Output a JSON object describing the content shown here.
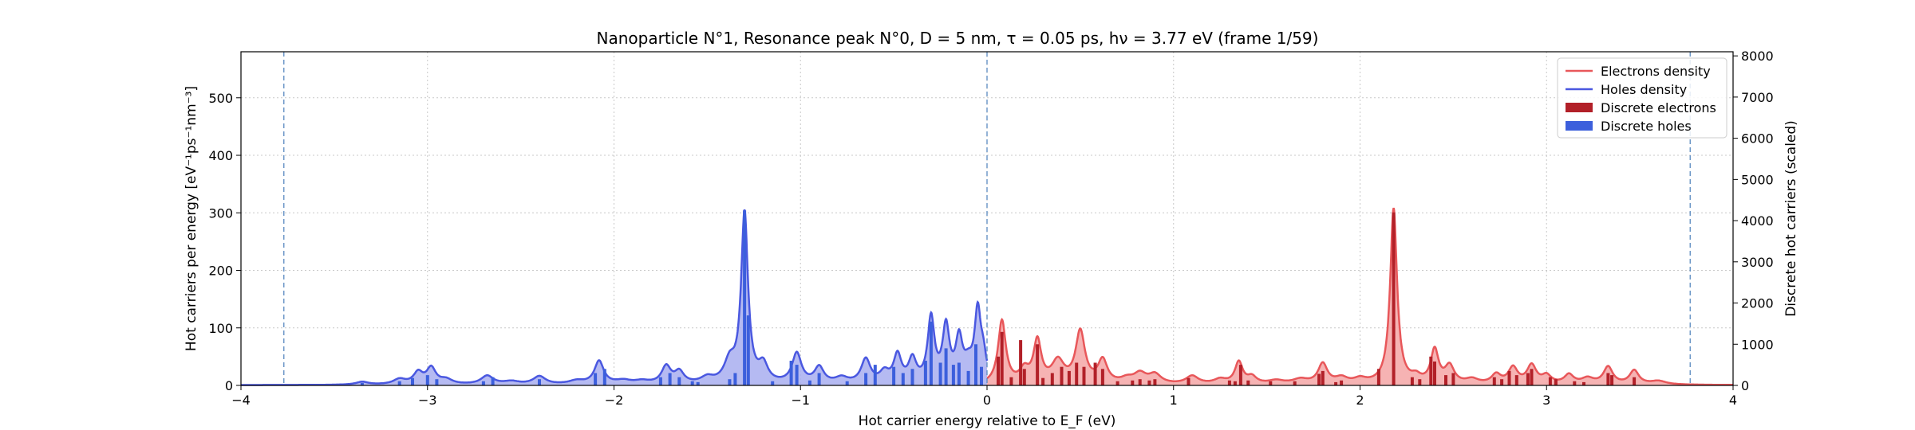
{
  "chart_data": {
    "type": "area",
    "title": "Nanoparticle N°1, Resonance peak N°0, D = 5 nm, τ = 0.05 ps, hν = 3.77 eV   (frame 1/59)",
    "xlabel": "Hot carrier energy relative to E_F (eV)",
    "ylabel": "Hot carriers per energy [eV⁻¹ps⁻¹nm⁻³]",
    "ylabel_right": "Discrete hot carriers (scaled)",
    "xlim": [
      -4,
      4
    ],
    "ylim": [
      0,
      580
    ],
    "ylim_right": [
      0,
      8100
    ],
    "x_ticks": [
      -4,
      -3,
      -2,
      -1,
      0,
      1,
      2,
      3,
      4
    ],
    "x_tick_labels": [
      "−4",
      "−3",
      "−2",
      "−1",
      "0",
      "1",
      "2",
      "3",
      "4"
    ],
    "y_ticks": [
      0,
      100,
      200,
      300,
      400,
      500
    ],
    "y_tick_labels": [
      "0",
      "100",
      "200",
      "300",
      "400",
      "500"
    ],
    "y_ticks_right": [
      0,
      1000,
      2000,
      3000,
      4000,
      5000,
      6000,
      7000,
      8000
    ],
    "y_tick_labels_right": [
      "0",
      "1000",
      "2000",
      "3000",
      "4000",
      "5000",
      "6000",
      "7000",
      "8000"
    ],
    "grid": true,
    "legend_position": "top-right",
    "vlines": [
      -3.77,
      0,
      3.77
    ],
    "series": [
      {
        "name": "Electrons density",
        "color": "#e8575a",
        "fill": "#f4a6a6",
        "baseline": 0.5,
        "peaks": [
          [
            0.08,
            110,
            0.025
          ],
          [
            0.2,
            22,
            0.03
          ],
          [
            0.27,
            73,
            0.025
          ],
          [
            0.38,
            38,
            0.04
          ],
          [
            0.5,
            90,
            0.03
          ],
          [
            0.62,
            40,
            0.03
          ],
          [
            0.75,
            8,
            0.04
          ],
          [
            0.82,
            17,
            0.04
          ],
          [
            0.9,
            16,
            0.04
          ],
          [
            1.1,
            14,
            0.04
          ],
          [
            1.25,
            8,
            0.04
          ],
          [
            1.35,
            38,
            0.025
          ],
          [
            1.42,
            12,
            0.03
          ],
          [
            1.55,
            6,
            0.05
          ],
          [
            1.68,
            8,
            0.05
          ],
          [
            1.8,
            35,
            0.03
          ],
          [
            1.9,
            10,
            0.04
          ],
          [
            2.0,
            8,
            0.04
          ],
          [
            2.18,
            305,
            0.022
          ],
          [
            2.3,
            10,
            0.03
          ],
          [
            2.4,
            58,
            0.025
          ],
          [
            2.48,
            30,
            0.03
          ],
          [
            2.6,
            8,
            0.04
          ],
          [
            2.73,
            16,
            0.03
          ],
          [
            2.82,
            28,
            0.03
          ],
          [
            2.92,
            32,
            0.03
          ],
          [
            3.0,
            14,
            0.03
          ],
          [
            3.12,
            16,
            0.03
          ],
          [
            3.22,
            10,
            0.04
          ],
          [
            3.33,
            30,
            0.03
          ],
          [
            3.47,
            24,
            0.03
          ],
          [
            3.6,
            6,
            0.05
          ]
        ]
      },
      {
        "name": "Holes density",
        "color": "#4a58e0",
        "fill": "#a8aef0",
        "baseline": 0.5,
        "peaks": [
          [
            -3.35,
            5,
            0.04
          ],
          [
            -3.15,
            9,
            0.04
          ],
          [
            -3.05,
            20,
            0.03
          ],
          [
            -2.98,
            28,
            0.03
          ],
          [
            -2.9,
            8,
            0.04
          ],
          [
            -2.68,
            15,
            0.04
          ],
          [
            -2.55,
            5,
            0.05
          ],
          [
            -2.4,
            14,
            0.04
          ],
          [
            -2.2,
            6,
            0.05
          ],
          [
            -2.08,
            40,
            0.03
          ],
          [
            -1.95,
            6,
            0.05
          ],
          [
            -1.85,
            5,
            0.05
          ],
          [
            -1.72,
            30,
            0.03
          ],
          [
            -1.65,
            20,
            0.03
          ],
          [
            -1.5,
            10,
            0.04
          ],
          [
            -1.38,
            35,
            0.035
          ],
          [
            -1.3,
            295,
            0.022
          ],
          [
            -1.2,
            30,
            0.03
          ],
          [
            -1.02,
            52,
            0.03
          ],
          [
            -0.9,
            28,
            0.03
          ],
          [
            -0.78,
            10,
            0.04
          ],
          [
            -0.65,
            42,
            0.03
          ],
          [
            -0.55,
            18,
            0.03
          ],
          [
            -0.48,
            48,
            0.025
          ],
          [
            -0.4,
            40,
            0.025
          ],
          [
            -0.3,
            112,
            0.022
          ],
          [
            -0.22,
            95,
            0.022
          ],
          [
            -0.15,
            72,
            0.022
          ],
          [
            -0.1,
            28,
            0.03
          ],
          [
            -0.05,
            118,
            0.02
          ],
          [
            -0.02,
            40,
            0.02
          ]
        ]
      }
    ],
    "bars": [
      {
        "name": "Discrete electrons",
        "color": "#b22028",
        "x": [
          0.06,
          0.08,
          0.13,
          0.18,
          0.2,
          0.27,
          0.3,
          0.35,
          0.4,
          0.44,
          0.48,
          0.52,
          0.58,
          0.62,
          0.7,
          0.78,
          0.82,
          0.87,
          0.9,
          1.08,
          1.3,
          1.33,
          1.36,
          1.4,
          1.52,
          1.65,
          1.78,
          1.8,
          1.87,
          1.9,
          2.1,
          2.18,
          2.28,
          2.32,
          2.38,
          2.4,
          2.46,
          2.5,
          2.72,
          2.76,
          2.8,
          2.84,
          2.9,
          2.92,
          3.02,
          3.05,
          3.15,
          3.2,
          3.33,
          3.35,
          3.47
        ],
        "values": [
          700,
          1300,
          200,
          1100,
          400,
          1000,
          180,
          300,
          450,
          350,
          550,
          450,
          550,
          400,
          100,
          120,
          150,
          120,
          150,
          180,
          120,
          100,
          500,
          120,
          100,
          100,
          280,
          350,
          80,
          120,
          400,
          4200,
          200,
          150,
          700,
          580,
          250,
          300,
          200,
          150,
          350,
          250,
          300,
          400,
          200,
          150,
          100,
          80,
          300,
          250,
          200
        ]
      },
      {
        "name": "Discrete holes",
        "color": "#3c5fdc",
        "x": [
          -3.35,
          -3.15,
          -3.08,
          -3.0,
          -2.95,
          -2.7,
          -2.65,
          -2.4,
          -2.1,
          -2.05,
          -1.75,
          -1.7,
          -1.65,
          -1.58,
          -1.55,
          -1.38,
          -1.35,
          -1.3,
          -1.28,
          -1.15,
          -1.05,
          -1.02,
          -0.95,
          -0.9,
          -0.75,
          -0.65,
          -0.6,
          -0.5,
          -0.45,
          -0.4,
          -0.33,
          -0.3,
          -0.25,
          -0.22,
          -0.18,
          -0.15,
          -0.1,
          -0.06,
          -0.03
        ],
        "values": [
          60,
          100,
          180,
          250,
          150,
          100,
          200,
          150,
          300,
          400,
          200,
          300,
          200,
          100,
          80,
          150,
          300,
          4250,
          1700,
          100,
          600,
          500,
          120,
          300,
          100,
          300,
          500,
          450,
          300,
          400,
          600,
          1550,
          550,
          900,
          500,
          550,
          350,
          1000,
          450
        ]
      }
    ]
  }
}
